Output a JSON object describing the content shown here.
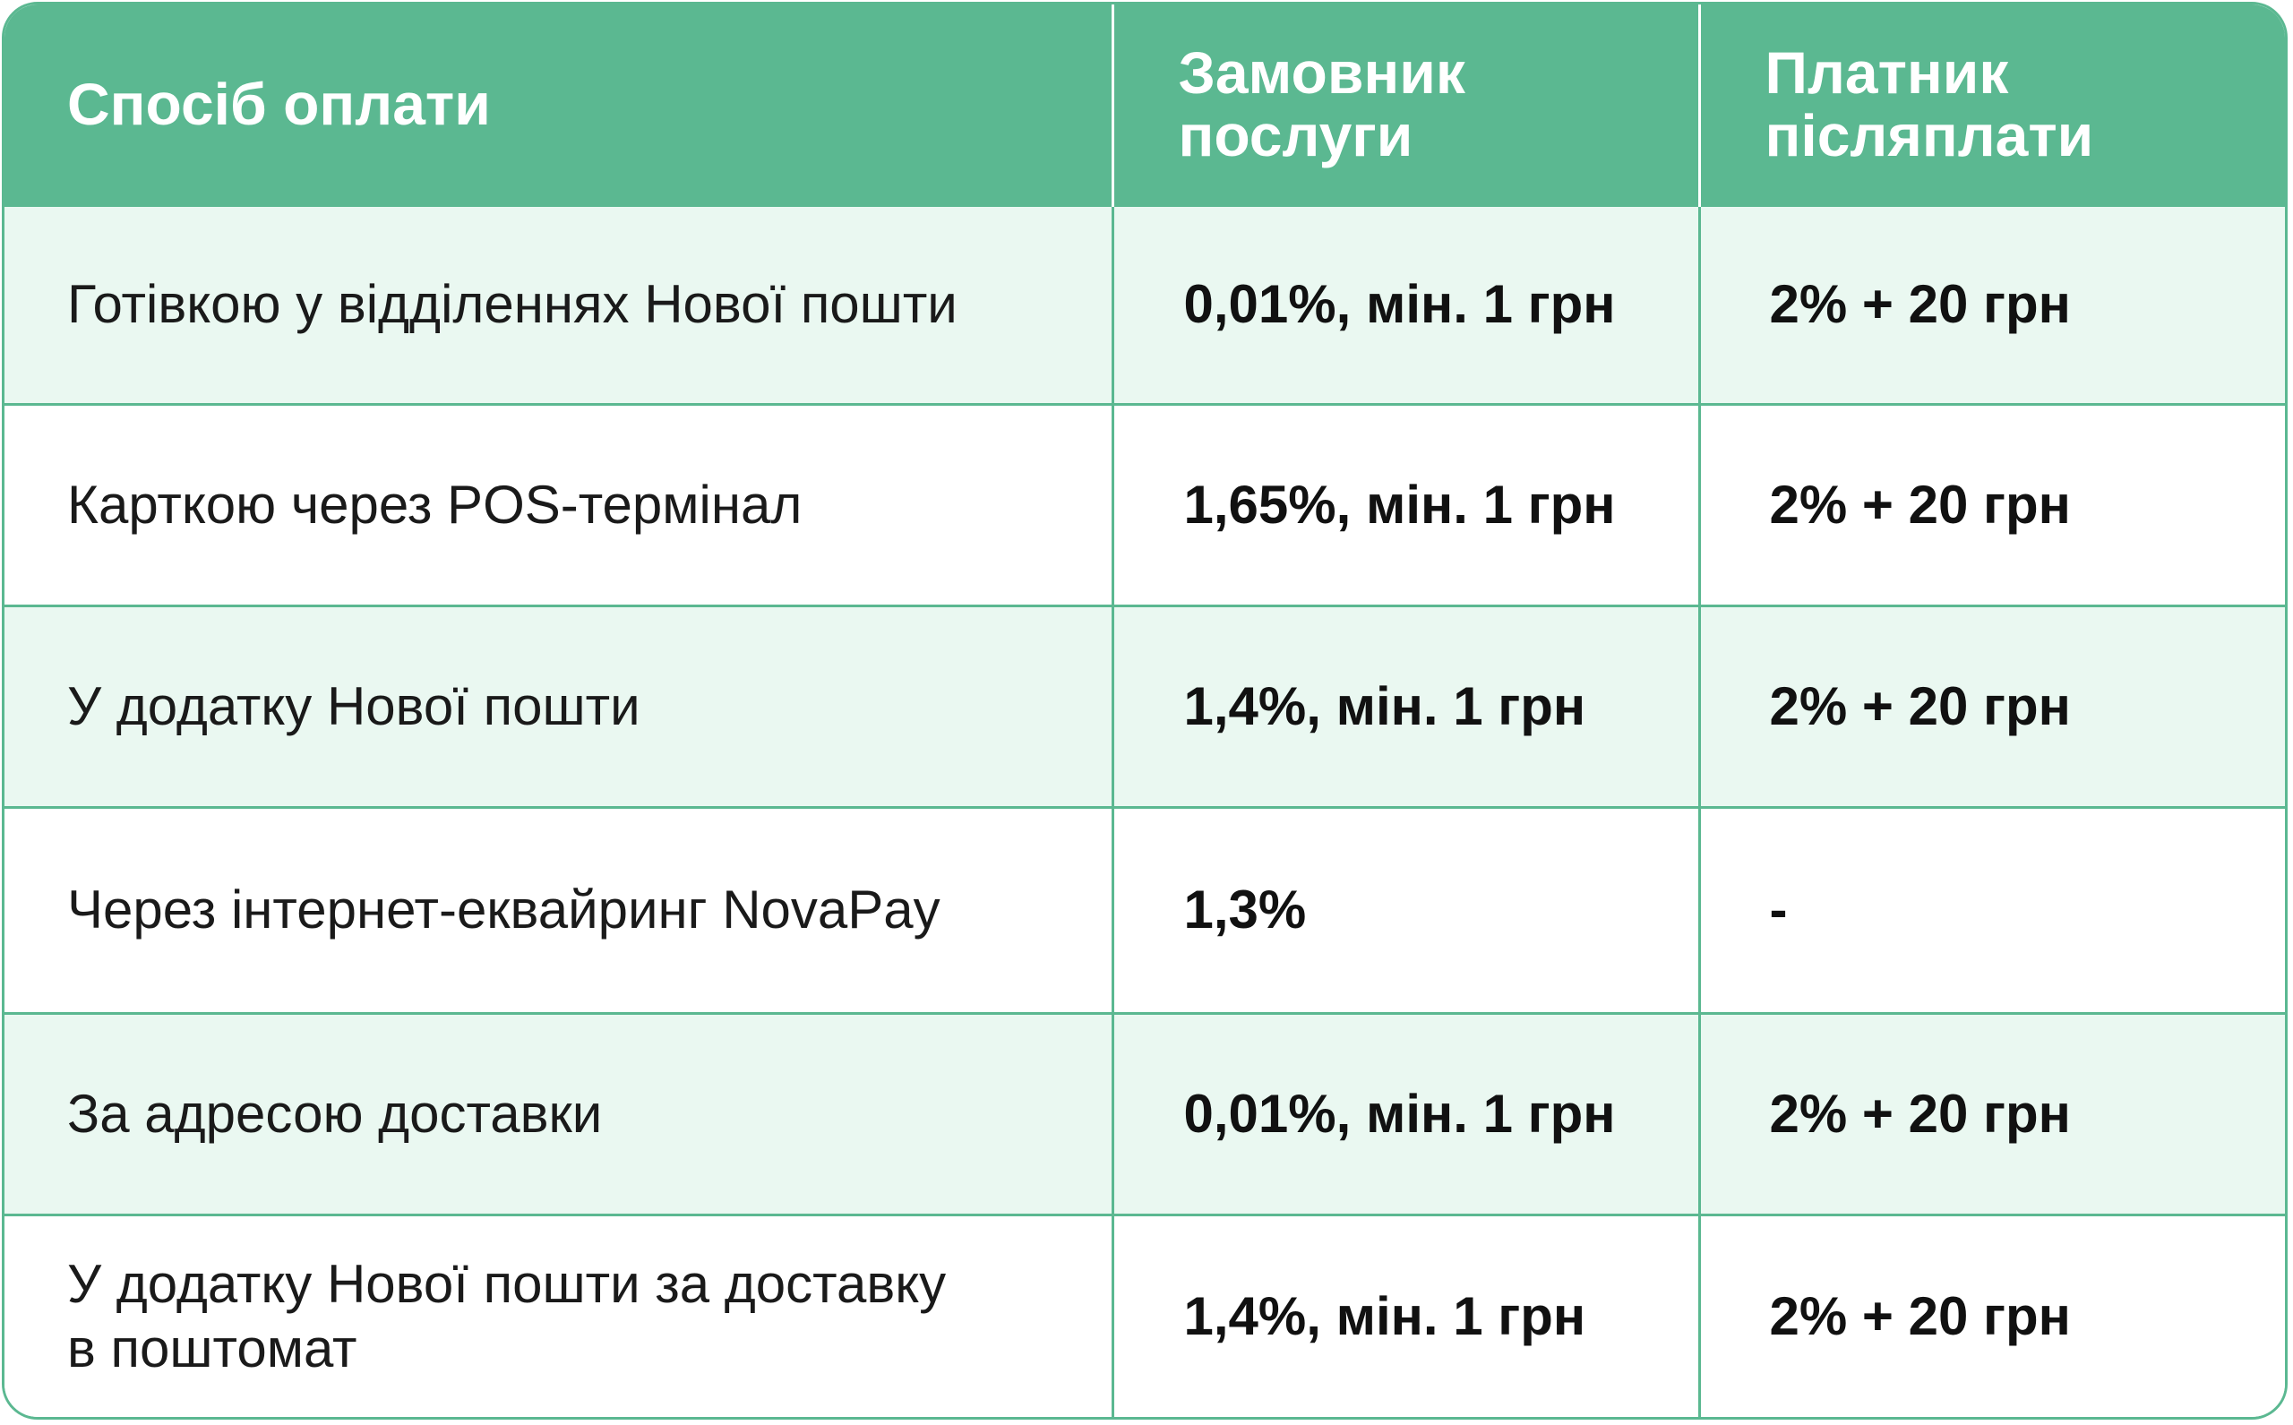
{
  "table": {
    "headers": {
      "method": "Спосіб оплати",
      "customer_line1": "Замовник",
      "customer_line2": "послуги",
      "payer_line1": "Платник",
      "payer_line2": "післяплати"
    },
    "rows": [
      {
        "method": "Готівкою у відділеннях Нової пошти",
        "customer": "0,01%, мін. 1 грн",
        "payer": "2% + 20 грн"
      },
      {
        "method": "Карткою через POS-термінал",
        "customer": "1,65%, мін. 1 грн",
        "payer": "2% + 20 грн"
      },
      {
        "method": "У додатку Нової пошти",
        "customer": "1,4%, мін. 1 грн",
        "payer": "2% + 20 грн"
      },
      {
        "method": "Через інтернет-еквайринг NovaPay",
        "customer": "1,3%",
        "payer": "-"
      },
      {
        "method": "За адресою доставки",
        "customer": "0,01%, мін. 1 грн",
        "payer": "2% + 20 грн"
      },
      {
        "method_line1": "У додатку Нової пошти за доставку",
        "method_line2": "в поштомат",
        "customer": "1,4%, мін. 1 грн",
        "payer": "2% + 20 грн"
      }
    ]
  },
  "colors": {
    "header_bg": "#5bb891",
    "odd_row_bg": "#eaf8f1",
    "even_row_bg": "#ffffff",
    "border": "#5bb891"
  }
}
